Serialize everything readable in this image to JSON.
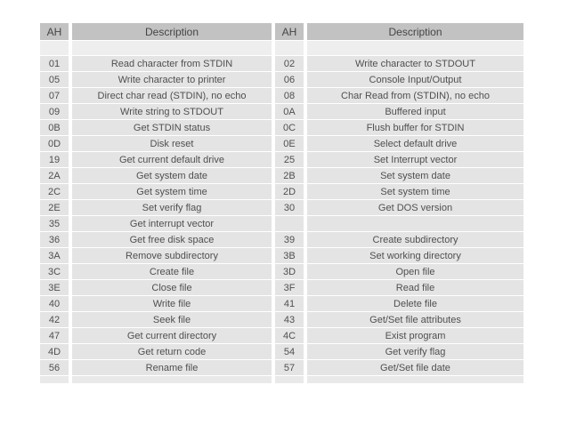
{
  "colors": {
    "page_bg": "#ffffff",
    "header_bg": "#c2c2c2",
    "header_text": "#454545",
    "cell_bg": "#e4e4e4",
    "cell_text": "#4f4f4f",
    "spacer_bg": "#eeeeee",
    "footer_bg": "#e9e9e9"
  },
  "table": {
    "headers": [
      "AH",
      "Description",
      "AH",
      "Description"
    ],
    "rows": [
      [
        "01",
        "Read character from STDIN",
        "02",
        "Write character to STDOUT"
      ],
      [
        "05",
        "Write character to printer",
        "06",
        "Console Input/Output"
      ],
      [
        "07",
        "Direct char read (STDIN), no echo",
        "08",
        "Char Read from (STDIN), no echo"
      ],
      [
        "09",
        "Write string to STDOUT",
        "0A",
        "Buffered input"
      ],
      [
        "0B",
        "Get STDIN status",
        "0C",
        "Flush buffer for STDIN"
      ],
      [
        "0D",
        "Disk reset",
        "0E",
        "Select default drive"
      ],
      [
        "19",
        "Get current default drive",
        "25",
        "Set Interrupt vector"
      ],
      [
        "2A",
        "Get system date",
        "2B",
        "Set system date"
      ],
      [
        "2C",
        "Get system time",
        "2D",
        "Set system time"
      ],
      [
        "2E",
        "Set verify flag",
        "30",
        "Get DOS version"
      ],
      [
        "35",
        "Get interrupt vector",
        "",
        ""
      ],
      [
        "36",
        "Get free disk space",
        "39",
        "Create subdirectory"
      ],
      [
        "3A",
        "Remove subdirectory",
        "3B",
        "Set working directory"
      ],
      [
        "3C",
        "Create file",
        "3D",
        "Open file"
      ],
      [
        "3E",
        "Close file",
        "3F",
        "Read file"
      ],
      [
        "40",
        "Write file",
        "41",
        "Delete file"
      ],
      [
        "42",
        "Seek file",
        "43",
        "Get/Set file attributes"
      ],
      [
        "47",
        "Get current directory",
        "4C",
        "Exist program"
      ],
      [
        "4D",
        "Get return code",
        "54",
        "Get verify flag"
      ],
      [
        "56",
        "Rename file",
        "57",
        "Get/Set file date"
      ]
    ]
  }
}
